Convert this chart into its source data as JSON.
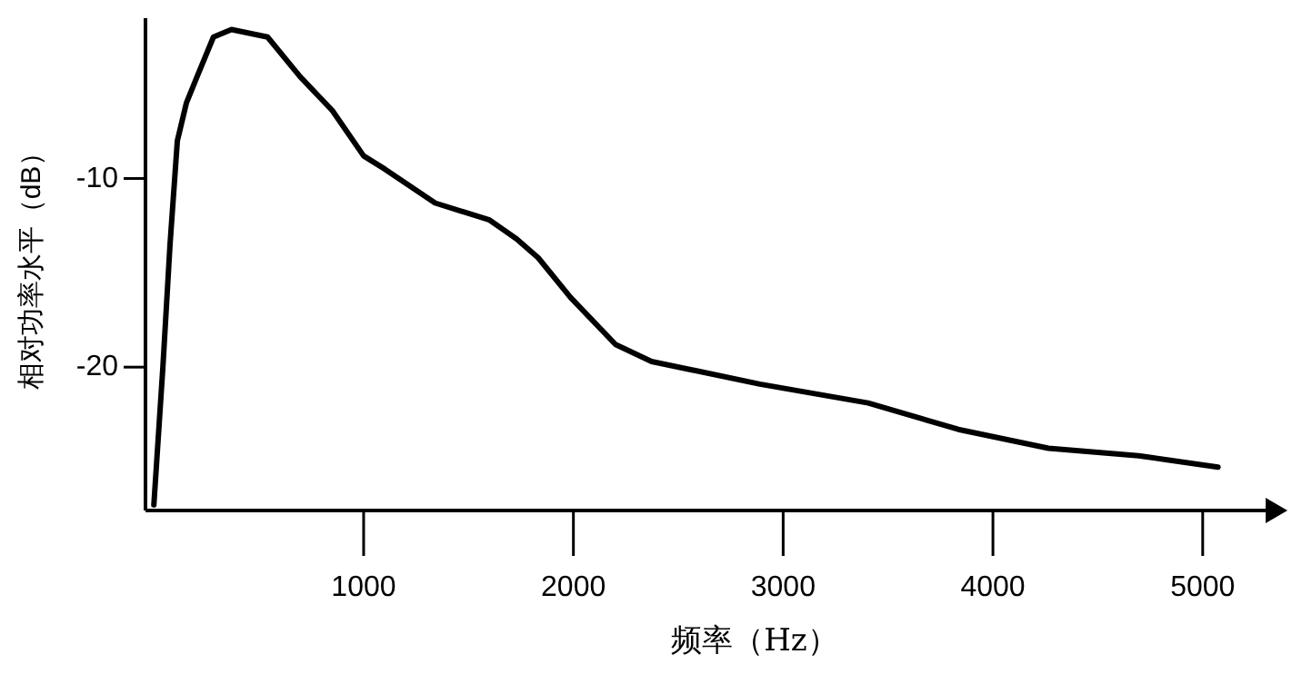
{
  "chart_data": {
    "type": "line",
    "xlabel": "频率（Hz）",
    "ylabel": "相对功率水平（dB）",
    "x": [
      0,
      43,
      77,
      112,
      155,
      206,
      284,
      370,
      542,
      697,
      851,
      1000,
      1101,
      1341,
      1600,
      1729,
      1832,
      1986,
      2201,
      2373,
      2889,
      3405,
      3835,
      4265,
      4695,
      5073
    ],
    "series": [
      {
        "color": "#000000",
        "values": [
          -27.3,
          -20,
          -13.5,
          -8.0,
          -6.0,
          -4.6,
          -2.5,
          -2.1,
          -2.5,
          -4.6,
          -6.4,
          -8.8,
          -9.5,
          -11.3,
          -12.2,
          -13.2,
          -14.2,
          -16.3,
          -18.8,
          -19.7,
          -20.9,
          -21.9,
          -23.3,
          -24.3,
          -24.7,
          -25.3
        ]
      }
    ],
    "xlim": [
      -40,
      5300
    ],
    "ylim": [
      -27.6,
      -1.5
    ],
    "xticks": [
      1000,
      2000,
      3000,
      4000,
      5000
    ],
    "yticks": [
      -10,
      -20
    ],
    "grid": false,
    "marker": "none",
    "line_style": "solid"
  }
}
